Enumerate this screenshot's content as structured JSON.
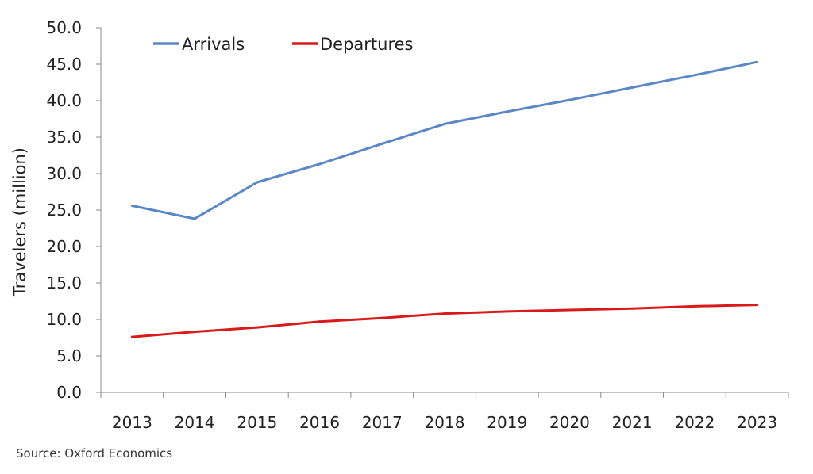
{
  "chart_data": {
    "type": "line",
    "categories": [
      "2013",
      "2014",
      "2015",
      "2016",
      "2017",
      "2018",
      "2019",
      "2020",
      "2021",
      "2022",
      "2023"
    ],
    "ylabel": "Travelers (million)",
    "xlabel": "",
    "ylim": [
      0,
      50
    ],
    "yticks": [
      "0.0",
      "5.0",
      "10.0",
      "15.0",
      "20.0",
      "25.0",
      "30.0",
      "35.0",
      "40.0",
      "45.0",
      "50.0"
    ],
    "grid": false,
    "legend_position": "top-left",
    "series": [
      {
        "name": "Arrivals",
        "color": "#5b87c4",
        "values": [
          25.6,
          23.8,
          28.8,
          31.3,
          34.1,
          36.8,
          38.5,
          40.1,
          41.8,
          43.5,
          45.3
        ]
      },
      {
        "name": "Departures",
        "color": "#d91a1a",
        "values": [
          7.6,
          8.3,
          8.9,
          9.7,
          10.2,
          10.8,
          11.1,
          11.3,
          11.5,
          11.8,
          12.0
        ]
      }
    ]
  },
  "source_note": "Source:  Oxford Economics"
}
